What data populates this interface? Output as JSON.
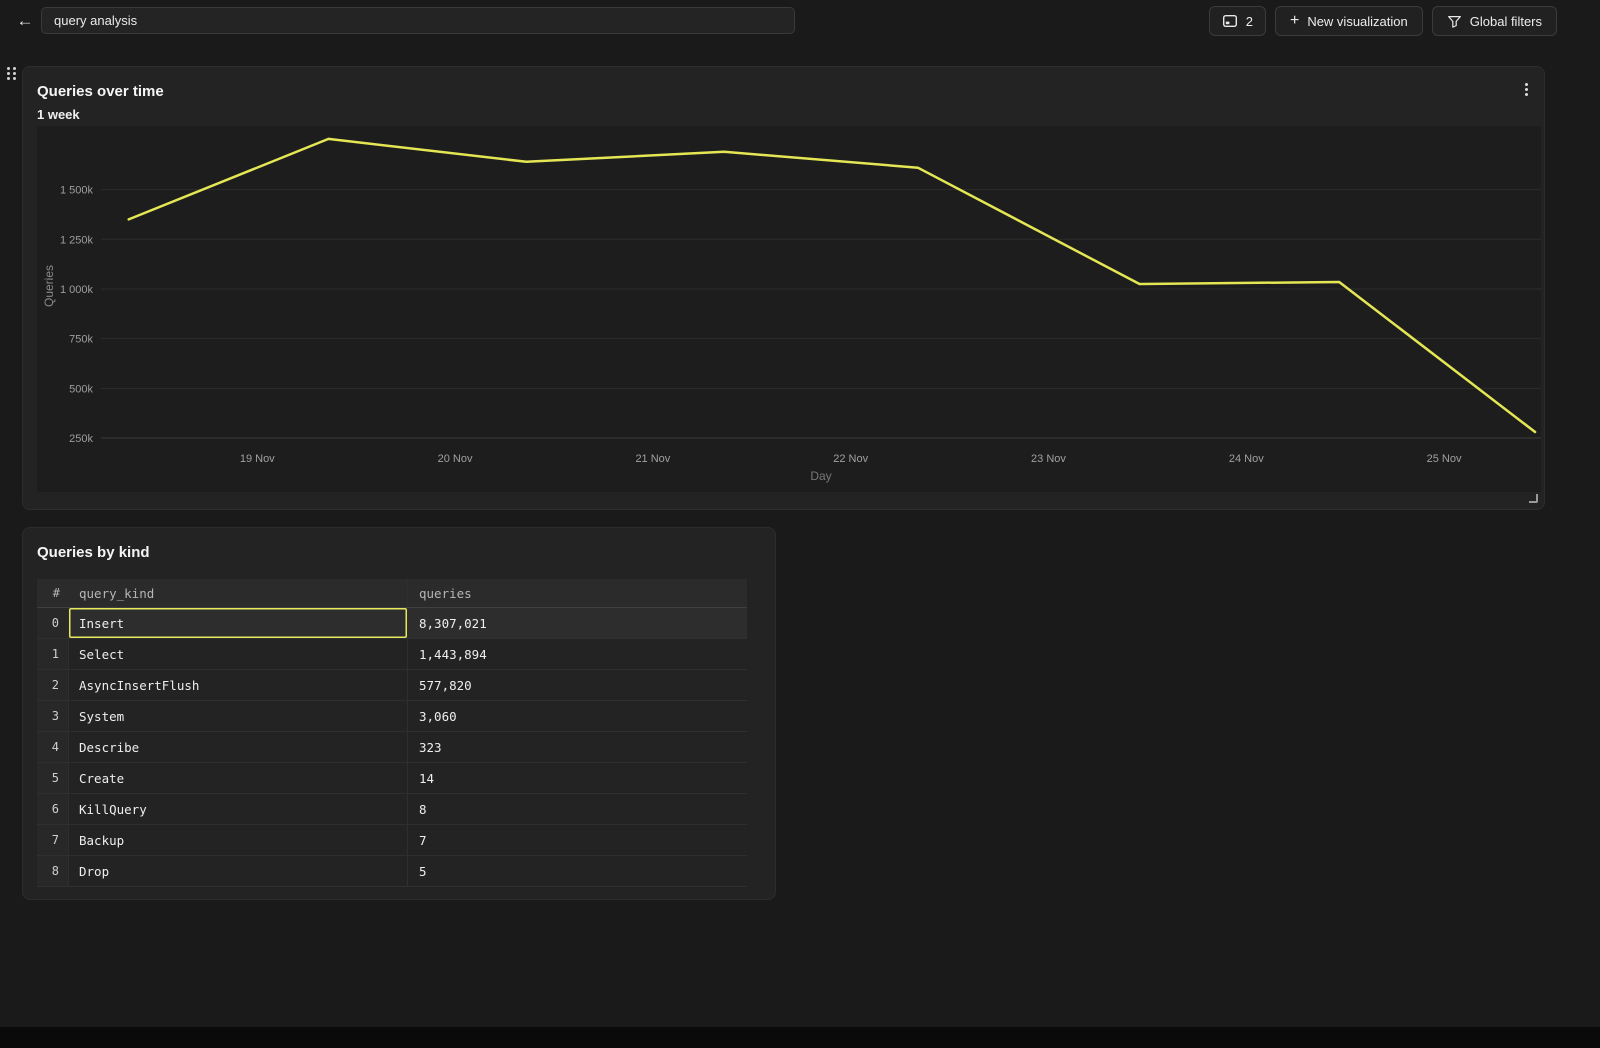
{
  "topbar": {
    "back_icon": "arrow-left-icon",
    "search": {
      "value": "query analysis"
    },
    "viz_count_button": {
      "count": "2",
      "icon": "console-panel-icon"
    },
    "new_visualization_button": {
      "label": "New visualization",
      "icon": "plus-icon"
    },
    "global_filters_button": {
      "label": "Global filters",
      "icon": "funnel-icon"
    }
  },
  "chart_panel": {
    "title": "Queries over time",
    "subtitle": "1 week",
    "menu_icon": "kebab-menu-icon",
    "resize_icon": "resize-corner-icon",
    "drag_icon": "drag-handle-icon"
  },
  "chart_data": {
    "type": "line",
    "title": "Queries over time",
    "subtitle": "1 week",
    "xlabel": "Day",
    "ylabel": "Queries",
    "legend": "none",
    "grid": true,
    "line_color": "#e4e654",
    "x_range_days_nov": [
      18.21,
      25.49
    ],
    "ylim_k": [
      250,
      1820
    ],
    "x_tick_days": [
      19,
      20,
      21,
      22,
      23,
      24,
      25
    ],
    "x_tick_labels": [
      "19 Nov",
      "20 Nov",
      "21 Nov",
      "22 Nov",
      "23 Nov",
      "24 Nov",
      "25 Nov"
    ],
    "y_tick_values_k": [
      250,
      500,
      750,
      1000,
      1250,
      1500
    ],
    "y_tick_labels": [
      "250k",
      "500k",
      "750k",
      "1 000k",
      "1 250k",
      "1 500k"
    ],
    "series": [
      {
        "name": "Queries",
        "points": [
          {
            "x_day_nov": 18.35,
            "queries_k": 1350
          },
          {
            "x_day_nov": 19.36,
            "queries_k": 1755
          },
          {
            "x_day_nov": 20.36,
            "queries_k": 1640
          },
          {
            "x_day_nov": 21.36,
            "queries_k": 1690
          },
          {
            "x_day_nov": 22.34,
            "queries_k": 1610
          },
          {
            "x_day_nov": 23.46,
            "queries_k": 1025
          },
          {
            "x_day_nov": 24.47,
            "queries_k": 1035
          },
          {
            "x_day_nov": 25.46,
            "queries_k": 280
          }
        ]
      }
    ]
  },
  "table_panel": {
    "title": "Queries by kind",
    "columns": [
      "#",
      "query_kind",
      "queries"
    ],
    "selection_color": "#e7e95d",
    "selected_cell": {
      "row_index": 0,
      "column": "query_kind"
    },
    "rows": [
      {
        "i": "0",
        "query_kind": "Insert",
        "queries": "8,307,021",
        "selected": true
      },
      {
        "i": "1",
        "query_kind": "Select",
        "queries": "1,443,894"
      },
      {
        "i": "2",
        "query_kind": "AsyncInsertFlush",
        "queries": "577,820"
      },
      {
        "i": "3",
        "query_kind": "System",
        "queries": "3,060"
      },
      {
        "i": "4",
        "query_kind": "Describe",
        "queries": "323"
      },
      {
        "i": "5",
        "query_kind": "Create",
        "queries": "14"
      },
      {
        "i": "6",
        "query_kind": "KillQuery",
        "queries": "8"
      },
      {
        "i": "7",
        "query_kind": "Backup",
        "queries": "7"
      },
      {
        "i": "8",
        "query_kind": "Drop",
        "queries": "5"
      }
    ]
  }
}
